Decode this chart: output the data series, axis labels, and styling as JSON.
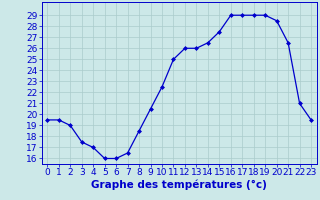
{
  "hours": [
    0,
    1,
    2,
    3,
    4,
    5,
    6,
    7,
    8,
    9,
    10,
    11,
    12,
    13,
    14,
    15,
    16,
    17,
    18,
    19,
    20,
    21,
    22,
    23
  ],
  "temps": [
    19.5,
    19.5,
    19.0,
    17.5,
    17.0,
    16.0,
    16.0,
    16.5,
    18.5,
    20.5,
    22.5,
    25.0,
    26.0,
    26.0,
    26.5,
    27.5,
    29.0,
    29.0,
    29.0,
    29.0,
    28.5,
    26.5,
    21.0,
    19.5
  ],
  "line_color": "#0000cc",
  "marker": "D",
  "marker_size": 2.0,
  "bg_color": "#cce8e8",
  "grid_color": "#aacccc",
  "xlabel": "Graphe des températures (°c)",
  "xlabel_color": "#0000cc",
  "ylim_min": 15.5,
  "ylim_max": 30.2,
  "yticks": [
    16,
    17,
    18,
    19,
    20,
    21,
    22,
    23,
    24,
    25,
    26,
    27,
    28,
    29
  ],
  "tick_fontsize": 6.5,
  "label_fontsize": 7.5
}
